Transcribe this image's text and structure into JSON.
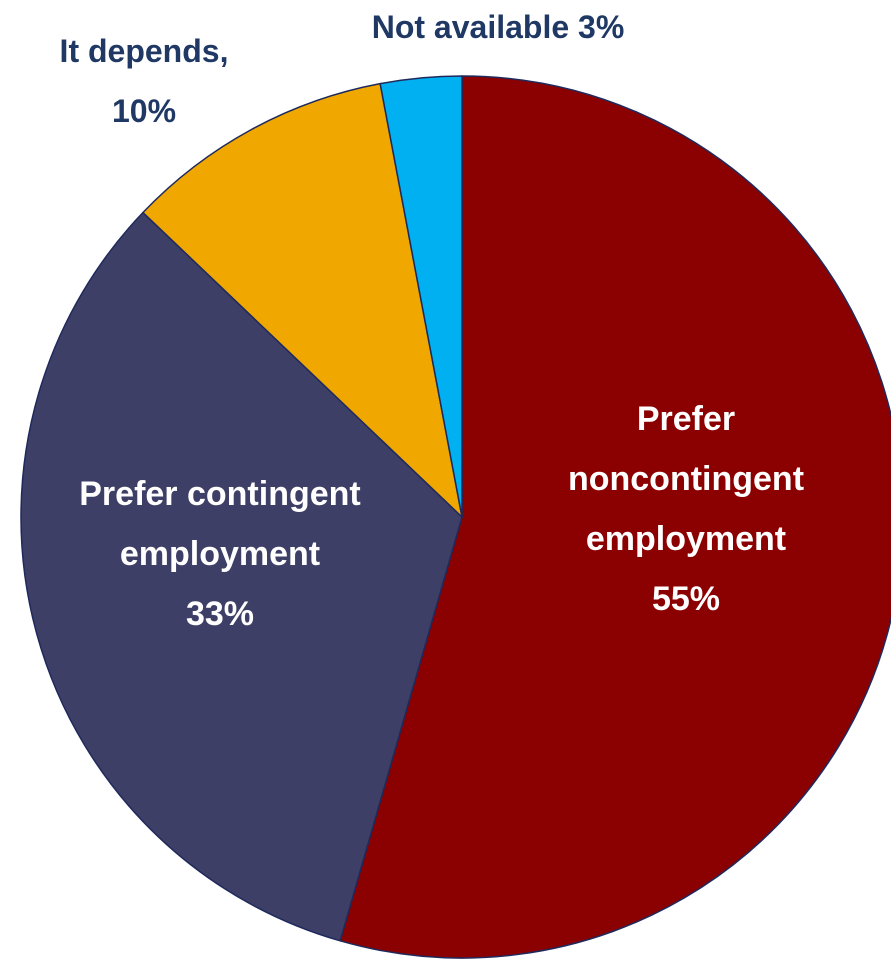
{
  "chart_data": {
    "type": "pie",
    "title": "",
    "start_angle_deg": 0,
    "direction": "clockwise",
    "slices": [
      {
        "label": "Prefer noncontingent employment",
        "value": 55,
        "value_label": "55%",
        "label_lines": [
          "Prefer",
          "noncontingent",
          "employment",
          "55%"
        ],
        "label_position": "inside",
        "color": "#8b0000"
      },
      {
        "label": "Prefer contingent employment",
        "value": 33,
        "value_label": "33%",
        "label_lines": [
          "Prefer contingent",
          "employment",
          "33%"
        ],
        "label_position": "inside",
        "color": "#3e3f66"
      },
      {
        "label": "It depends",
        "value": 10,
        "value_label": "10%",
        "label_lines": [
          "It depends,",
          "10%"
        ],
        "label_position": "outside",
        "color": "#f0a800"
      },
      {
        "label": "Not available",
        "value": 3,
        "value_label": "3%",
        "label_lines": [
          "Not available 3%"
        ],
        "label_position": "outside",
        "color": "#00b0f0"
      }
    ],
    "slice_border_color": "#1f2a5c",
    "inside_label_color": "#ffffff",
    "outside_label_color": "#1f3864",
    "legend": "none"
  }
}
